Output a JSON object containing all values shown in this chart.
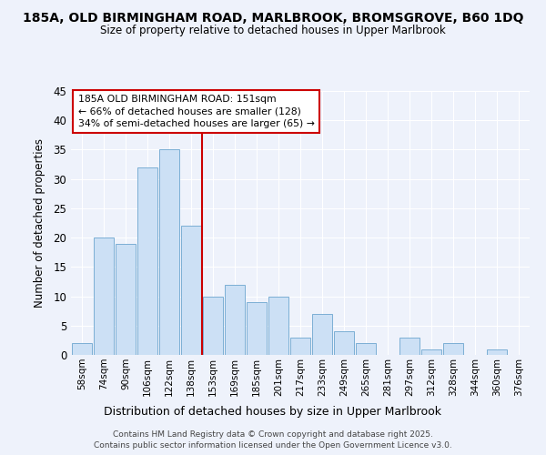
{
  "title": "185A, OLD BIRMINGHAM ROAD, MARLBROOK, BROMSGROVE, B60 1DQ",
  "subtitle": "Size of property relative to detached houses in Upper Marlbrook",
  "xlabel": "Distribution of detached houses by size in Upper Marlbrook",
  "ylabel": "Number of detached properties",
  "bin_labels": [
    "58sqm",
    "74sqm",
    "90sqm",
    "106sqm",
    "122sqm",
    "138sqm",
    "153sqm",
    "169sqm",
    "185sqm",
    "201sqm",
    "217sqm",
    "233sqm",
    "249sqm",
    "265sqm",
    "281sqm",
    "297sqm",
    "312sqm",
    "328sqm",
    "344sqm",
    "360sqm",
    "376sqm"
  ],
  "bar_heights": [
    2,
    20,
    19,
    32,
    35,
    22,
    10,
    12,
    9,
    10,
    3,
    7,
    4,
    2,
    0,
    3,
    1,
    2,
    0,
    1,
    0
  ],
  "bar_color": "#cce0f5",
  "bar_edge_color": "#7bafd4",
  "property_line_index": 6,
  "property_line_color": "#cc0000",
  "annotation_title": "185A OLD BIRMINGHAM ROAD: 151sqm",
  "annotation_line1": "← 66% of detached houses are smaller (128)",
  "annotation_line2": "34% of semi-detached houses are larger (65) →",
  "annotation_box_color": "#cc0000",
  "ylim": [
    0,
    45
  ],
  "yticks": [
    0,
    5,
    10,
    15,
    20,
    25,
    30,
    35,
    40,
    45
  ],
  "background_color": "#eef2fb",
  "plot_background": "#eef2fb",
  "grid_color": "#ffffff",
  "footer_line1": "Contains HM Land Registry data © Crown copyright and database right 2025.",
  "footer_line2": "Contains public sector information licensed under the Open Government Licence v3.0."
}
